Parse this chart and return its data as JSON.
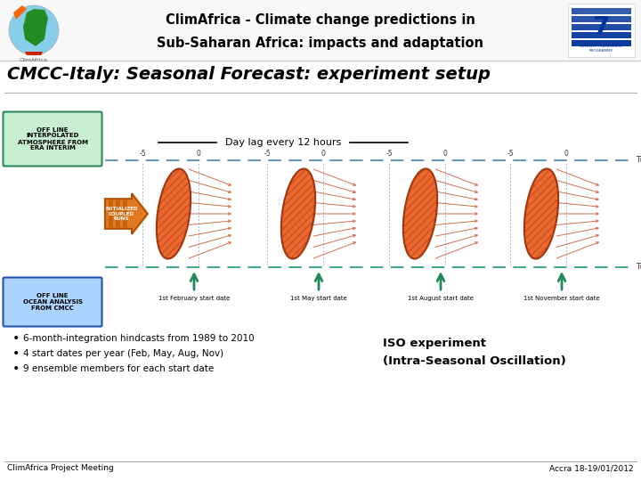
{
  "bg_color": "#ffffff",
  "title_text_line1": "ClimAfrica - Climate change predictions in",
  "title_text_line2": "Sub-Saharan Africa: impacts and adaptation",
  "slide_title": "CMCC-Italy: Seasonal Forecast: experiment setup",
  "footer_left": "ClimAfrica Project Meeting",
  "footer_right": "Accra 18-19/01/2012",
  "bullet_points": [
    "6-month-integration hindcasts from 1989 to 2010",
    "4 start dates per year (Feb, May, Aug, Nov)",
    "9 ensemble members for each start date"
  ],
  "iso_text_line1": "ISO experiment",
  "iso_text_line2": "(Intra-Seasonal Oscillation)",
  "day_lag_text": "Day lag every 12 hours",
  "box1_text": "OFF LINE\nINTERPOLATED\nATMOSPHERE FROM\nERA INTERIM",
  "box1_color": "#c8f0d0",
  "box1_border": "#2e8b57",
  "box2_text": "OFF LINE\nOCEAN ANALYSIS\nFROM CMCC",
  "box2_color": "#aad4ff",
  "box2_border": "#2255aa",
  "arrow_body_color": "#e07820",
  "arrow_stripe_color": "#b05000",
  "ellipse_fill": "#e8591a",
  "ellipse_edge": "#8b2500",
  "hatch_line_color": "#c04010",
  "ensemble_line_color": "#d07050",
  "top_line_color": "#6699bb",
  "bottom_line_color": "#44aa88",
  "grid_line_color": "#88aabb",
  "up_arrow_color": "#228855",
  "start_dates": [
    "1st February start date",
    "1st May start date",
    "1st August start date",
    "1st November start date"
  ],
  "separator_color": "#aaaaaa",
  "header_sep_color": "#cccccc",
  "time_label_color": "#333333",
  "tick_label_color": "#333333"
}
